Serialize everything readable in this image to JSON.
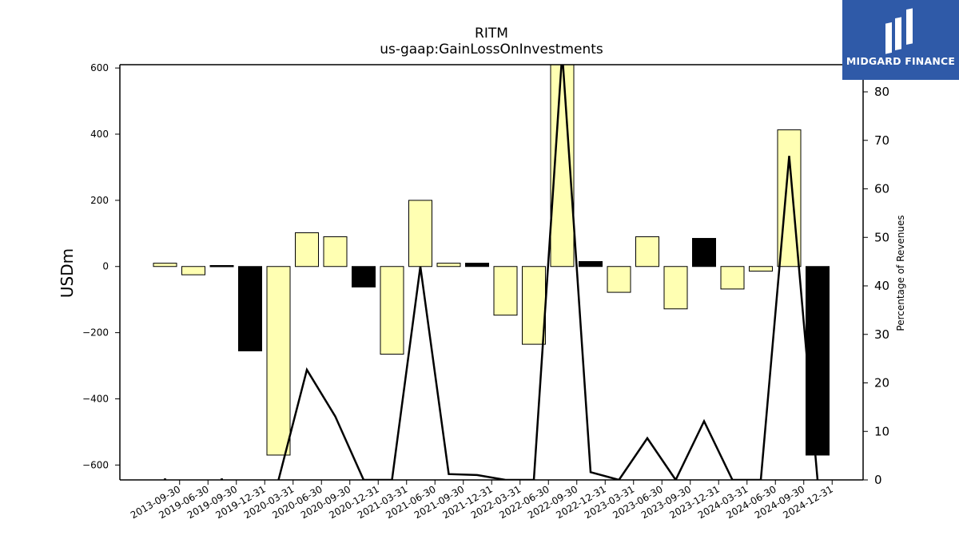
{
  "chart_data": {
    "type": "bar",
    "title": "RITM",
    "subtitle": "us-gaap:GainLossOnInvestments",
    "ylabel": "USDm",
    "ylabel_right": "Percentage of Revenues",
    "ylim": [
      -645,
      610
    ],
    "ylim_right": [
      0,
      85.6
    ],
    "yticks_left": [
      -600,
      -400,
      -200,
      0,
      200,
      400,
      600
    ],
    "yticks_right": [
      0,
      10,
      20,
      30,
      40,
      50,
      60,
      70,
      80
    ],
    "categories": [
      "2013-09-30",
      "2019-06-30",
      "2019-09-30",
      "2019-12-31",
      "2020-03-31",
      "2020-06-30",
      "2020-09-30",
      "2020-12-31",
      "2021-03-31",
      "2021-06-30",
      "2021-09-30",
      "2021-12-31",
      "2022-03-31",
      "2022-06-30",
      "2022-09-30",
      "2022-12-31",
      "2023-03-31",
      "2023-06-30",
      "2023-09-30",
      "2023-12-31",
      "2024-03-31",
      "2024-06-30",
      "2024-09-30",
      "2024-12-31"
    ],
    "series": [
      {
        "kind": "bar",
        "values": [
          10,
          -25,
          3,
          -255,
          -570,
          102,
          90,
          -62,
          -265,
          200,
          10,
          10,
          -147,
          -235,
          650,
          15,
          -78,
          90,
          -128,
          85,
          -68,
          -14,
          413,
          -570
        ],
        "colors": [
          "#ffffb2",
          "#ffffb2",
          "#000000",
          "#000000",
          "#ffffb2",
          "#ffffb2",
          "#ffffb2",
          "#000000",
          "#ffffb2",
          "#ffffb2",
          "#ffffb2",
          "#000000",
          "#ffffb2",
          "#ffffb2",
          "#ffffb2",
          "#000000",
          "#ffffb2",
          "#ffffb2",
          "#ffffb2",
          "#000000",
          "#ffffb2",
          "#ffffb2",
          "#ffffb2",
          "#000000"
        ]
      },
      {
        "kind": "line",
        "axis": "right",
        "values": [
          0.1,
          null,
          0.1,
          null,
          0,
          22.7,
          13.1,
          0,
          0,
          44,
          1.2,
          1.0,
          0,
          0,
          88,
          1.6,
          0,
          8.6,
          0,
          12.1,
          0,
          0,
          66.8,
          0
        ]
      }
    ]
  },
  "logo": {
    "text": "MIDGARD FINANCE",
    "color": "#2f5aa8"
  }
}
